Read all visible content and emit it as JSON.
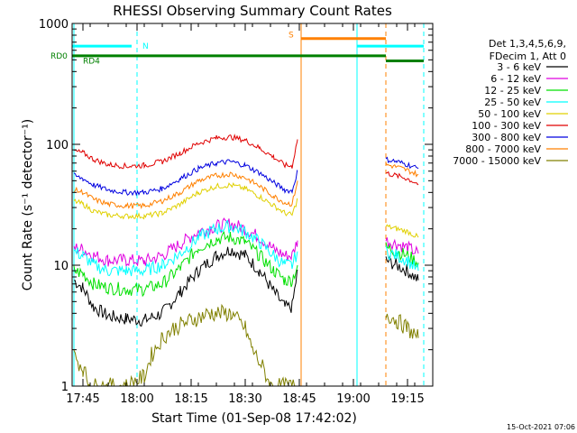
{
  "chart_data": {
    "type": "line",
    "title": "RHESSI Observing Summary Count Rates",
    "xlabel": "Start Time (01-Sep-08 17:42:02)",
    "ylabel": "Count Rate (s⁻¹ detector⁻¹)",
    "y_scale": "log",
    "ylim": [
      1,
      1000
    ],
    "xlim_minutes": [
      0,
      100
    ],
    "x_ticks": [
      {
        "label": "17:45",
        "t": 3
      },
      {
        "label": "18:00",
        "t": 18
      },
      {
        "label": "18:15",
        "t": 33
      },
      {
        "label": "18:30",
        "t": 48
      },
      {
        "label": "18:45",
        "t": 63
      },
      {
        "label": "19:00",
        "t": 78
      },
      {
        "label": "19:15",
        "t": 93
      }
    ],
    "y_ticks": [
      {
        "label": "1",
        "v": 1
      },
      {
        "label": "10",
        "v": 10
      },
      {
        "label": "100",
        "v": 100
      },
      {
        "label": "1000",
        "v": 1000
      }
    ],
    "legend_header": [
      "Det 1,3,4,5,6,9,",
      "FDecim 1, Att 0"
    ],
    "legend_position": "right",
    "series": [
      {
        "name": "3 - 6 keV",
        "color": "#000000",
        "points": [
          [
            0.5,
            7.5
          ],
          [
            3,
            6.5
          ],
          [
            6,
            4.5
          ],
          [
            10,
            3.8
          ],
          [
            15,
            3.6
          ],
          [
            20,
            3.5
          ],
          [
            25,
            4
          ],
          [
            30,
            6
          ],
          [
            35,
            9
          ],
          [
            40,
            12
          ],
          [
            44,
            13.5
          ],
          [
            48,
            12
          ],
          [
            52,
            9
          ],
          [
            56,
            6
          ],
          [
            59,
            4.5
          ],
          [
            61,
            4.5
          ],
          [
            62.5,
            9
          ]
        ],
        "points_b": [
          [
            87,
            11
          ],
          [
            90,
            10
          ],
          [
            93,
            9
          ],
          [
            96,
            7.5
          ]
        ]
      },
      {
        "name": "6 - 12 keV",
        "color": "#e000e0",
        "points": [
          [
            0.5,
            14
          ],
          [
            3,
            13.5
          ],
          [
            6,
            12
          ],
          [
            10,
            11
          ],
          [
            15,
            11
          ],
          [
            20,
            10.8
          ],
          [
            25,
            12
          ],
          [
            30,
            15
          ],
          [
            35,
            19
          ],
          [
            40,
            21
          ],
          [
            44,
            22
          ],
          [
            48,
            20
          ],
          [
            52,
            17
          ],
          [
            56,
            13.5
          ],
          [
            59,
            12
          ],
          [
            61,
            12
          ],
          [
            62.5,
            16
          ]
        ],
        "points_b": [
          [
            87,
            16
          ],
          [
            90,
            15
          ],
          [
            93,
            14
          ],
          [
            96,
            12.5
          ]
        ]
      },
      {
        "name": "12 - 25 keV",
        "color": "#00e000",
        "points": [
          [
            0.5,
            9
          ],
          [
            3,
            8.5
          ],
          [
            6,
            7
          ],
          [
            10,
            6.5
          ],
          [
            15,
            6.3
          ],
          [
            20,
            6.3
          ],
          [
            25,
            7
          ],
          [
            30,
            9.5
          ],
          [
            35,
            14
          ],
          [
            40,
            16.5
          ],
          [
            44,
            17
          ],
          [
            48,
            15.5
          ],
          [
            52,
            12
          ],
          [
            56,
            9
          ],
          [
            59,
            7.5
          ],
          [
            61,
            7.5
          ],
          [
            62.5,
            10
          ]
        ],
        "points_b": [
          [
            87,
            14
          ],
          [
            90,
            13
          ],
          [
            93,
            12
          ],
          [
            96,
            10.5
          ]
        ]
      },
      {
        "name": "25 - 50 keV",
        "color": "#00ffff",
        "points": [
          [
            0.5,
            13
          ],
          [
            3,
            12
          ],
          [
            6,
            10
          ],
          [
            10,
            9
          ],
          [
            15,
            9
          ],
          [
            20,
            9
          ],
          [
            25,
            10
          ],
          [
            30,
            12.5
          ],
          [
            35,
            17
          ],
          [
            40,
            20
          ],
          [
            44,
            21
          ],
          [
            48,
            19
          ],
          [
            52,
            15.5
          ],
          [
            56,
            12
          ],
          [
            59,
            10
          ],
          [
            61,
            10
          ],
          [
            62.5,
            13
          ]
        ],
        "points_b": [
          [
            87,
            13
          ],
          [
            90,
            12
          ],
          [
            93,
            11
          ],
          [
            96,
            9
          ]
        ]
      },
      {
        "name": "50 - 100 keV",
        "color": "#e0d000",
        "points": [
          [
            0.5,
            34
          ],
          [
            3,
            32
          ],
          [
            6,
            28
          ],
          [
            10,
            26
          ],
          [
            15,
            25.5
          ],
          [
            20,
            25.5
          ],
          [
            25,
            27
          ],
          [
            30,
            32
          ],
          [
            35,
            40
          ],
          [
            40,
            45
          ],
          [
            44,
            46
          ],
          [
            48,
            43
          ],
          [
            52,
            37
          ],
          [
            56,
            31
          ],
          [
            59,
            27
          ],
          [
            61,
            26
          ],
          [
            62.5,
            35
          ]
        ],
        "points_b": [
          [
            87,
            21
          ],
          [
            90,
            20
          ],
          [
            93,
            19
          ],
          [
            96,
            17
          ]
        ]
      },
      {
        "name": "100 - 300 keV",
        "color": "#e00000",
        "points": [
          [
            0.5,
            88
          ],
          [
            3,
            85
          ],
          [
            6,
            75
          ],
          [
            10,
            68
          ],
          [
            15,
            66
          ],
          [
            20,
            67
          ],
          [
            25,
            72
          ],
          [
            30,
            85
          ],
          [
            35,
            102
          ],
          [
            40,
            113
          ],
          [
            44,
            115
          ],
          [
            48,
            108
          ],
          [
            52,
            93
          ],
          [
            56,
            78
          ],
          [
            59,
            67
          ],
          [
            61,
            66
          ],
          [
            62.5,
            110
          ]
        ],
        "points_b": [
          [
            87,
            58
          ],
          [
            90,
            55
          ],
          [
            93,
            52
          ],
          [
            96,
            47
          ]
        ]
      },
      {
        "name": "300 - 800 keV",
        "color": "#0000e0",
        "points": [
          [
            0.5,
            55
          ],
          [
            3,
            52
          ],
          [
            6,
            46
          ],
          [
            10,
            42
          ],
          [
            15,
            40
          ],
          [
            20,
            40
          ],
          [
            25,
            43
          ],
          [
            30,
            52
          ],
          [
            35,
            63
          ],
          [
            40,
            70
          ],
          [
            44,
            72
          ],
          [
            48,
            67
          ],
          [
            52,
            58
          ],
          [
            56,
            48
          ],
          [
            59,
            42
          ],
          [
            61,
            41
          ],
          [
            62.5,
            60
          ]
        ],
        "points_b": [
          [
            87,
            75
          ],
          [
            90,
            72
          ],
          [
            93,
            68
          ],
          [
            96,
            63
          ]
        ]
      },
      {
        "name": "800 - 7000 keV",
        "color": "#ff8000",
        "points": [
          [
            0.5,
            42
          ],
          [
            3,
            40
          ],
          [
            6,
            35
          ],
          [
            10,
            32
          ],
          [
            15,
            31
          ],
          [
            20,
            31
          ],
          [
            25,
            34
          ],
          [
            30,
            40
          ],
          [
            35,
            50
          ],
          [
            40,
            55
          ],
          [
            44,
            57
          ],
          [
            48,
            53
          ],
          [
            52,
            45
          ],
          [
            56,
            37
          ],
          [
            59,
            33
          ],
          [
            61,
            32
          ],
          [
            62.5,
            50
          ]
        ],
        "points_b": [
          [
            87,
            68
          ],
          [
            90,
            65
          ],
          [
            93,
            61
          ],
          [
            96,
            56
          ]
        ]
      },
      {
        "name": "7000 - 15000 keV",
        "color": "#808000",
        "points": [
          [
            0.5,
            1.8
          ],
          [
            3,
            1.4
          ],
          [
            5,
            1
          ],
          [
            15,
            1
          ],
          [
            20,
            1.2
          ],
          [
            22,
            1.8
          ],
          [
            25,
            2.5
          ],
          [
            28,
            3
          ],
          [
            33,
            3.5
          ],
          [
            38,
            4
          ],
          [
            44,
            4
          ],
          [
            48,
            3
          ],
          [
            50,
            2
          ],
          [
            53,
            1.4
          ],
          [
            55,
            1
          ],
          [
            62,
            1
          ]
        ],
        "points_b": [
          [
            87,
            4
          ],
          [
            90,
            3.5
          ],
          [
            93,
            3
          ],
          [
            96,
            2.5
          ]
        ]
      }
    ],
    "flag_bars": [
      {
        "label": "N",
        "color": "#00ffff",
        "segments": [
          [
            0,
            16.5
          ],
          [
            79,
            97.5
          ]
        ],
        "v": 650
      },
      {
        "label": "S",
        "color": "#ff8000",
        "segments": [
          [
            63.5,
            87
          ]
        ],
        "v": 750
      },
      {
        "label": "RD0",
        "color": "#008000",
        "segments": [
          [
            0,
            87
          ]
        ],
        "v": 540
      },
      {
        "label": "RD4",
        "color": "#008000",
        "segments": [
          [
            87,
            97.5
          ]
        ],
        "v": 490
      }
    ],
    "vertical_lines": [
      {
        "t": 0.5,
        "color": "#00ffff",
        "dashed": false
      },
      {
        "t": 18,
        "color": "#00ffff",
        "dashed": true
      },
      {
        "t": 63.5,
        "color": "#ff8000",
        "dashed": false
      },
      {
        "t": 79,
        "color": "#00ffff",
        "dashed": false
      },
      {
        "t": 87,
        "color": "#ff8000",
        "dashed": true
      },
      {
        "t": 97.5,
        "color": "#00ffff",
        "dashed": true
      }
    ],
    "footer_date": "15-Oct-2021 07:06"
  }
}
